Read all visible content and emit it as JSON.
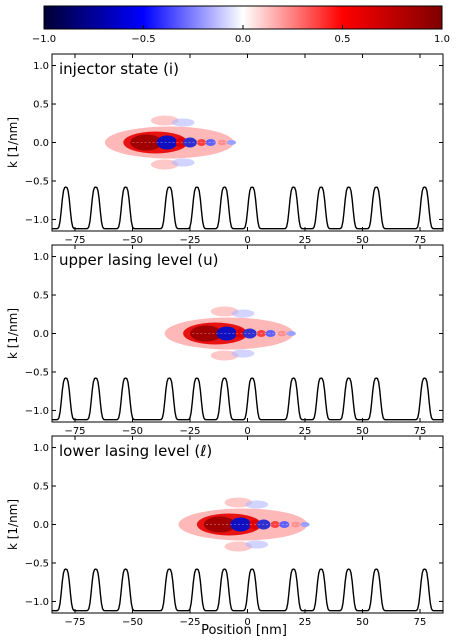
{
  "chart_data": {
    "type": "heatmap",
    "colorbar": {
      "colormap": "seismic",
      "range": [
        -1.0,
        1.0
      ],
      "ticks": [
        -1.0,
        -0.5,
        0.0,
        0.5,
        1.0
      ],
      "tick_labels": [
        "−1.0",
        "−0.5",
        "0.0",
        "0.5",
        "1.0"
      ]
    },
    "xlabel": "Position [nm]",
    "ylabel": "k [1/nm]",
    "xlim": [
      -85,
      85
    ],
    "ylim": [
      -1.15,
      1.15
    ],
    "x_ticks": [
      -75,
      -50,
      -25,
      0,
      25,
      50,
      75
    ],
    "x_tick_labels": [
      "−75",
      "−50",
      "−25",
      "0",
      "25",
      "50",
      "75"
    ],
    "y_ticks": [
      -1.0,
      -0.5,
      0.0,
      0.5,
      1.0
    ],
    "y_tick_labels": [
      "−1.0",
      "−0.5",
      "0.0",
      "0.5",
      "1.0"
    ],
    "barrier_positions_nm": [
      -79,
      -66,
      -53,
      -34,
      -22,
      -10,
      2,
      20,
      32,
      44,
      56,
      77
    ],
    "panels": [
      {
        "title": "injector state (i)",
        "wigner_center_x_nm": -38,
        "wigner_center_k": 0.0
      },
      {
        "title": "upper lasing level (u)",
        "wigner_center_x_nm": -12,
        "wigner_center_k": 0.0
      },
      {
        "title": "lower lasing level (ℓ)",
        "wigner_center_x_nm": -6,
        "wigner_center_k": 0.0
      }
    ]
  }
}
